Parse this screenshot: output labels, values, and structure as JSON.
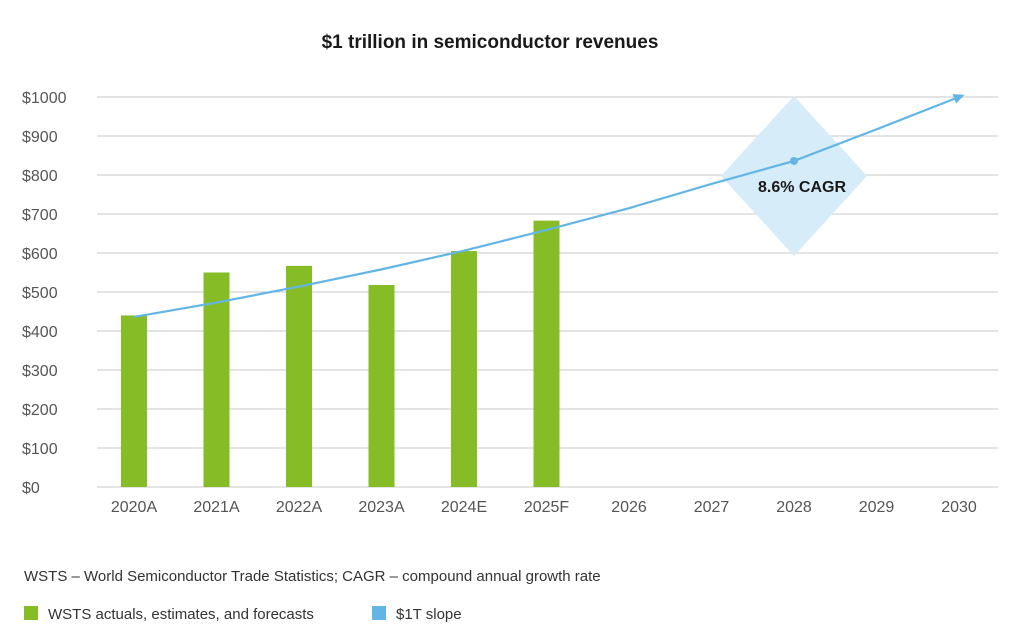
{
  "chart_data": {
    "type": "bar",
    "title": "$1 trillion in semiconductor revenues",
    "xlabel": "",
    "ylabel": "",
    "ylim": [
      0,
      1000
    ],
    "y_ticks": [
      "$0",
      "$100",
      "$200",
      "$300",
      "$400",
      "$500",
      "$600",
      "$700",
      "$800",
      "$900",
      "$1000"
    ],
    "y_tick_values": [
      0,
      100,
      200,
      300,
      400,
      500,
      600,
      700,
      800,
      900,
      1000
    ],
    "categories": [
      "2020A",
      "2021A",
      "2022A",
      "2023A",
      "2024E",
      "2025F",
      "2026",
      "2027",
      "2028",
      "2029",
      "2030"
    ],
    "grid": true,
    "series": [
      {
        "name": "WSTS actuals, estimates, and forecasts",
        "type": "bar",
        "color": "#86bc25",
        "values": [
          440,
          550,
          567,
          518,
          605,
          683,
          null,
          null,
          null,
          null,
          null
        ]
      },
      {
        "name": "$1T slope",
        "type": "line",
        "color": "#62b5e5",
        "values": [
          436,
          473,
          514,
          558,
          606,
          659,
          715,
          777,
          836,
          917,
          1000
        ]
      }
    ],
    "annotations": [
      {
        "text": "8.6% CAGR",
        "category": "2028",
        "value": 836
      }
    ],
    "note": "WSTS – World Semiconductor Trade Statistics; CAGR – compound annual growth rate",
    "legend": [
      {
        "label": "WSTS actuals, estimates, and forecasts",
        "color": "#86bc25"
      },
      {
        "label": "$1T slope",
        "color": "#62b5e5"
      }
    ],
    "legend_position": "bottom-left"
  },
  "colors": {
    "bar": "#86bc25",
    "line": "#62b5e5",
    "diamond": "#d6ecf8",
    "grid": "#c8c8c8"
  }
}
